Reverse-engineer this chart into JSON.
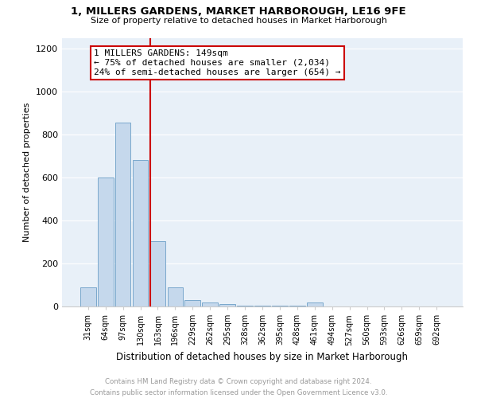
{
  "title": "1, MILLERS GARDENS, MARKET HARBOROUGH, LE16 9FE",
  "subtitle": "Size of property relative to detached houses in Market Harborough",
  "xlabel": "Distribution of detached houses by size in Market Harborough",
  "ylabel": "Number of detached properties",
  "annotation_line1": "1 MILLERS GARDENS: 149sqm",
  "annotation_line2": "← 75% of detached houses are smaller (2,034)",
  "annotation_line3": "24% of semi-detached houses are larger (654) →",
  "categories": [
    "31sqm",
    "64sqm",
    "97sqm",
    "130sqm",
    "163sqm",
    "196sqm",
    "229sqm",
    "262sqm",
    "295sqm",
    "328sqm",
    "362sqm",
    "395sqm",
    "428sqm",
    "461sqm",
    "494sqm",
    "527sqm",
    "560sqm",
    "593sqm",
    "626sqm",
    "659sqm",
    "692sqm"
  ],
  "values": [
    90,
    600,
    855,
    680,
    305,
    90,
    30,
    18,
    10,
    5,
    3,
    2,
    2,
    18,
    1,
    1,
    1,
    1,
    1,
    1,
    1
  ],
  "bar_color": "#c5d8ec",
  "bar_edge_color": "#7aa8cc",
  "vline_color": "#cc0000",
  "annotation_box_edge_color": "#cc0000",
  "plot_bg_color": "#e8f0f8",
  "fig_bg_color": "#ffffff",
  "grid_color": "#ffffff",
  "footer_text": "Contains HM Land Registry data © Crown copyright and database right 2024.\nContains public sector information licensed under the Open Government Licence v3.0.",
  "ylim": [
    0,
    1250
  ],
  "yticks": [
    0,
    200,
    400,
    600,
    800,
    1000,
    1200
  ],
  "vline_x": 3.57
}
